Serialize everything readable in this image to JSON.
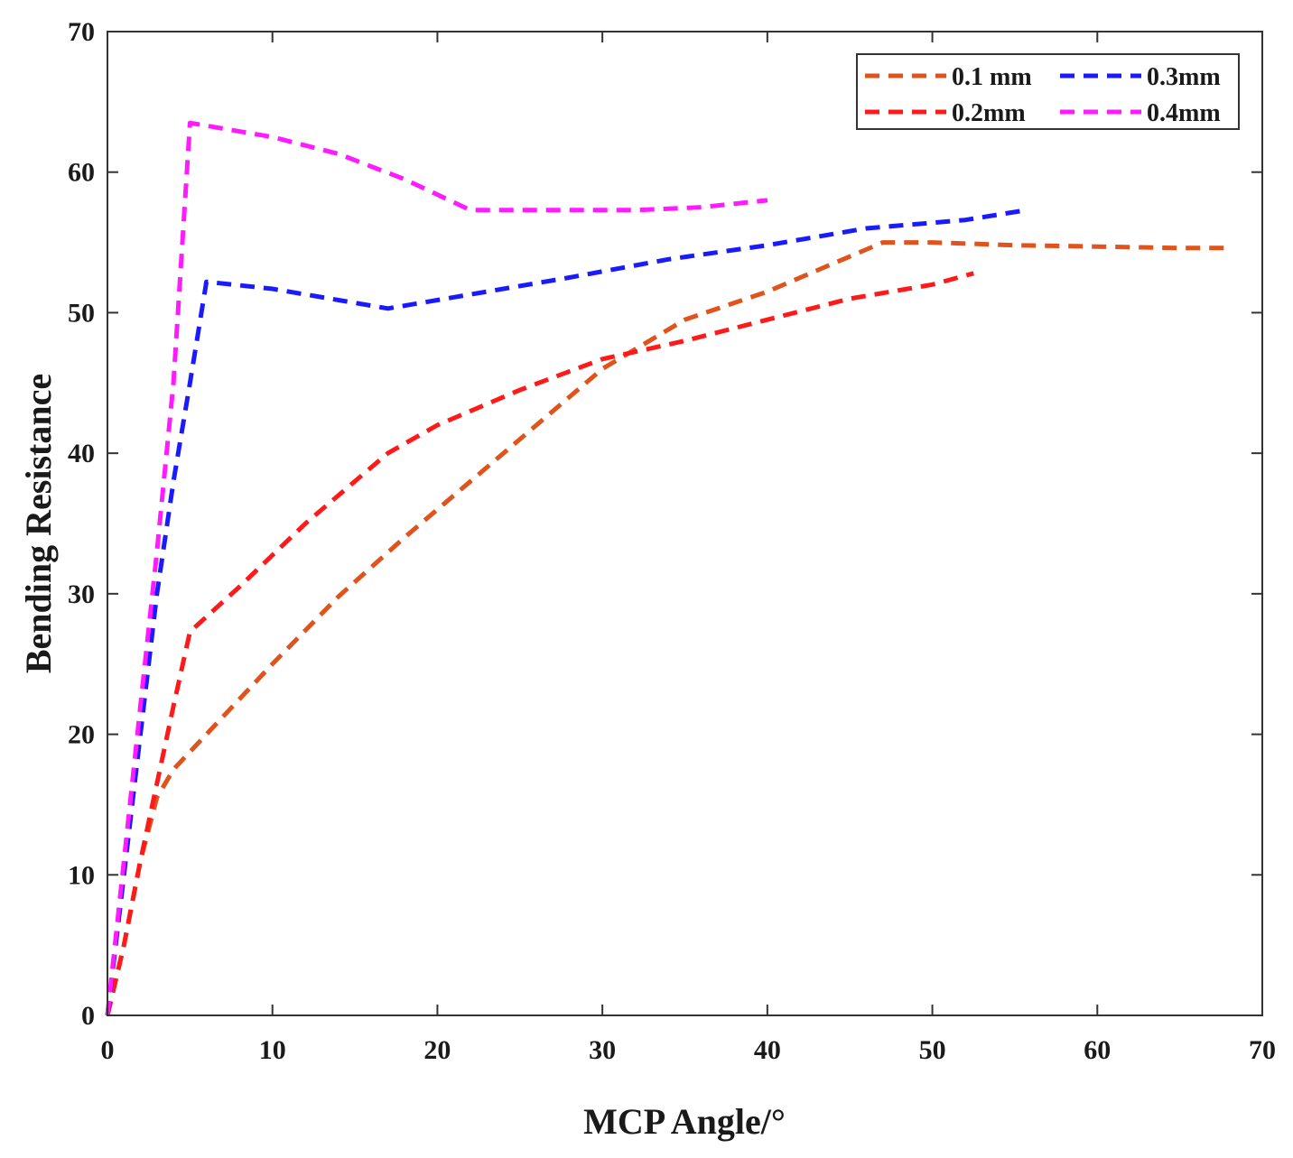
{
  "chart_data": {
    "type": "line",
    "title": "",
    "xlabel": "MCP Angle/°",
    "ylabel": "Bending Resistance",
    "xlim": [
      0,
      70
    ],
    "ylim": [
      0,
      70
    ],
    "xticks": [
      0,
      10,
      20,
      30,
      40,
      50,
      60,
      70
    ],
    "yticks": [
      0,
      10,
      20,
      30,
      40,
      50,
      60,
      70
    ],
    "xtick_labels": [
      "0",
      "10",
      "20",
      "30",
      "40",
      "50",
      "60",
      "70"
    ],
    "ytick_labels": [
      "0",
      "10",
      "20",
      "30",
      "40",
      "50",
      "60",
      "70"
    ],
    "grid": false,
    "legend_position": "top-right",
    "series": [
      {
        "name": "0.1 mm",
        "color": "#e0531c",
        "line_style": "dashed",
        "x": [
          0,
          1,
          2,
          3,
          4,
          6,
          10,
          14,
          18,
          22,
          26,
          30,
          35,
          40,
          44,
          47,
          50,
          55,
          60,
          65,
          67.7
        ],
        "y": [
          0,
          5,
          11,
          15.5,
          17.5,
          20,
          25,
          29.8,
          34,
          38,
          42,
          46,
          49.5,
          51.5,
          53.5,
          55,
          55,
          54.8,
          54.7,
          54.6,
          54.6
        ]
      },
      {
        "name": "0.2mm",
        "color": "#ff1a1a",
        "line_style": "dashed",
        "x": [
          0,
          1,
          2,
          3,
          4,
          5,
          8,
          12,
          17,
          20,
          25,
          30,
          35,
          40,
          45,
          50,
          52.5
        ],
        "y": [
          0,
          5,
          11,
          16.5,
          22,
          27.3,
          30.5,
          35,
          40,
          42,
          44.5,
          46.7,
          48,
          49.5,
          51,
          52,
          52.8
        ]
      },
      {
        "name": "0.3mm",
        "color": "#1a1aff",
        "line_style": "dashed",
        "x": [
          0,
          1,
          2,
          3,
          4,
          5,
          6,
          10,
          17,
          22,
          28,
          34,
          40,
          46,
          52,
          55.7
        ],
        "y": [
          0,
          10,
          20,
          30,
          38,
          45,
          52.2,
          51.7,
          50.3,
          51.3,
          52.5,
          53.8,
          54.8,
          56,
          56.6,
          57.3
        ]
      },
      {
        "name": "0.4mm",
        "color": "#ff1aff",
        "line_style": "dashed",
        "x": [
          0,
          1,
          2,
          3,
          4,
          5,
          10,
          14,
          18,
          22,
          28,
          32,
          36,
          40
        ],
        "y": [
          0,
          11,
          22,
          33,
          45,
          63.5,
          62.5,
          61.3,
          59.5,
          57.3,
          57.3,
          57.3,
          57.5,
          58
        ]
      }
    ]
  }
}
